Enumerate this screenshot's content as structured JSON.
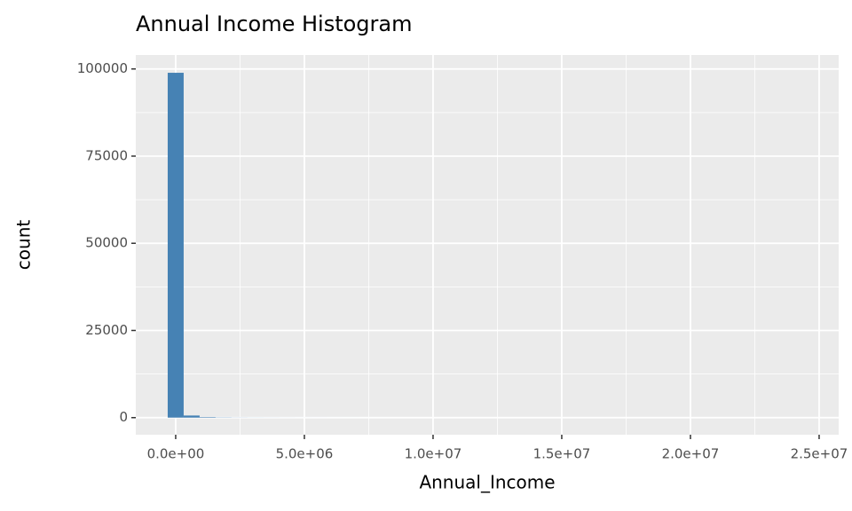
{
  "chart_data": {
    "type": "histogram",
    "title": "Annual Income Histogram",
    "x_label": "Annual_Income",
    "y_label": "count",
    "color": "#4682b4",
    "bins": [
      -310000,
      310000,
      930000,
      1550000,
      2170000,
      2790000,
      3410000,
      4030000,
      4650000,
      5270000,
      5890000,
      6510000,
      7130000,
      7750000,
      8370000,
      8990000,
      9610000,
      10230000,
      10850000,
      11470000,
      12090000,
      12710000,
      13330000,
      13950000,
      14570000,
      15190000,
      15810000,
      16430000,
      17050000,
      17670000,
      18290000,
      18910000,
      19530000,
      20150000,
      20770000,
      21390000,
      22010000,
      22630000,
      23250000,
      23870000,
      24490000
    ],
    "values": [
      98900,
      600,
      150,
      60,
      30,
      20,
      15,
      10,
      8,
      6,
      5,
      4,
      3,
      3,
      2,
      2,
      2,
      1,
      1,
      1,
      1,
      1,
      1,
      1,
      1,
      0,
      0,
      1,
      0,
      0,
      1,
      0,
      0,
      1,
      0,
      0,
      0,
      0,
      0,
      1
    ],
    "xlim": [
      -1550000,
      25760000
    ],
    "ylim": [
      -4900,
      104000
    ],
    "xticks": [
      {
        "value": 0,
        "label": "0.0e+00"
      },
      {
        "value": 5000000,
        "label": "5.0e+06"
      },
      {
        "value": 10000000,
        "label": "1.0e+07"
      },
      {
        "value": 15000000,
        "label": "1.5e+07"
      },
      {
        "value": 20000000,
        "label": "2.0e+07"
      },
      {
        "value": 25000000,
        "label": "2.5e+07"
      }
    ],
    "yticks": [
      0,
      25000,
      50000,
      75000,
      100000
    ],
    "x_minor_grid": [
      2500000,
      7500000,
      12500000,
      17500000,
      22500000
    ],
    "y_minor_grid": [
      12500,
      37500,
      62500,
      87500
    ],
    "grid": true
  }
}
